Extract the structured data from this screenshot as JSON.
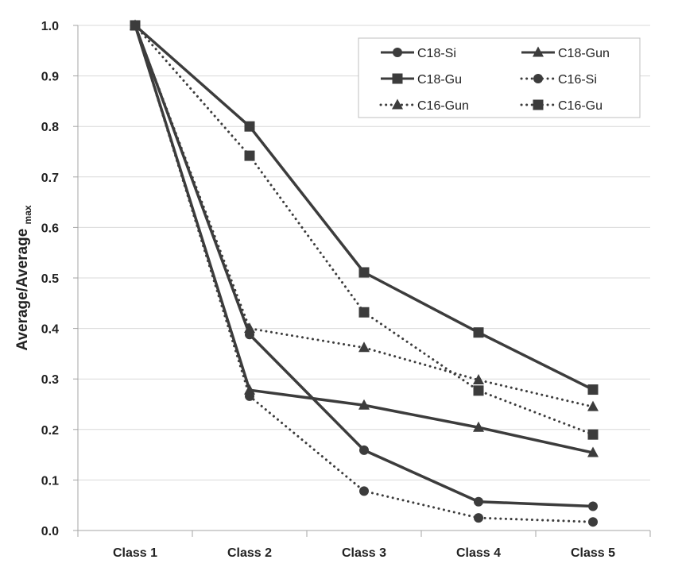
{
  "chart_data": {
    "type": "line",
    "title": "",
    "xlabel": "",
    "ylabel": {
      "main": "Average/Average",
      "subscript": "max"
    },
    "categories": [
      "Class 1",
      "Class 2",
      "Class 3",
      "Class 4",
      "Class 5"
    ],
    "ylim": [
      0.0,
      1.0
    ],
    "yticks": [
      "0.0",
      "0.1",
      "0.2",
      "0.3",
      "0.4",
      "0.5",
      "0.6",
      "0.7",
      "0.8",
      "0.9",
      "1.0"
    ],
    "grid": "horizontal",
    "legend_position": "top-right",
    "series": [
      {
        "name": "C18-Si",
        "marker": "circle",
        "line": "solid",
        "values": [
          1.0,
          0.388,
          0.159,
          0.057,
          0.048
        ]
      },
      {
        "name": "C18-Gun",
        "marker": "triangle",
        "line": "solid",
        "values": [
          1.0,
          0.278,
          0.248,
          0.204,
          0.154
        ]
      },
      {
        "name": "C18-Gu",
        "marker": "square",
        "line": "solid",
        "values": [
          1.0,
          0.8,
          0.511,
          0.392,
          0.279
        ]
      },
      {
        "name": "C16-Si",
        "marker": "circle",
        "line": "dotted",
        "values": [
          1.0,
          0.266,
          0.078,
          0.025,
          0.017
        ]
      },
      {
        "name": "C16-Gun",
        "marker": "triangle",
        "line": "dotted",
        "values": [
          1.0,
          0.4,
          0.362,
          0.298,
          0.245
        ]
      },
      {
        "name": "C16-Gu",
        "marker": "square",
        "line": "dotted",
        "values": [
          1.0,
          0.742,
          0.432,
          0.277,
          0.19
        ]
      }
    ],
    "colors": {
      "series": "#3c3c3c",
      "grid": "#d9d9d9",
      "axis": "#a6a6a6",
      "legend_border": "#bfbfbf"
    }
  }
}
